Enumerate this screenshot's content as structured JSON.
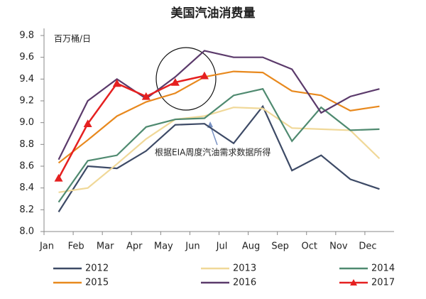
{
  "chart_data": {
    "type": "line",
    "title": "美国汽油消费量",
    "y_label": "百万桶/日",
    "annotation": "根据EIA周度汽油需求数据所得",
    "categories": [
      "Jan",
      "Feb",
      "Mar",
      "Apr",
      "May",
      "Jun",
      "Jul",
      "Aug",
      "Sep",
      "Oct",
      "Nov",
      "Dec"
    ],
    "ylim": [
      8.0,
      9.8
    ],
    "yticks": [
      {
        "value": 8.0,
        "label": "8.0"
      },
      8.2,
      8.4,
      8.6,
      8.8,
      {
        "value": 9.0,
        "label": "9.0"
      },
      9.2,
      9.4,
      9.6,
      9.8
    ],
    "series": [
      {
        "name": "2012",
        "color": "#3d4a66",
        "values": [
          8.18,
          8.6,
          8.58,
          8.74,
          8.98,
          8.99,
          8.81,
          9.15,
          8.56,
          8.7,
          8.48,
          8.39
        ]
      },
      {
        "name": "2013",
        "color": "#f0d898",
        "values": [
          8.36,
          8.4,
          8.62,
          8.85,
          9.03,
          9.06,
          9.14,
          9.13,
          8.95,
          8.94,
          8.93,
          8.67
        ]
      },
      {
        "name": "2014",
        "color": "#4f8a70",
        "values": [
          8.27,
          8.65,
          8.7,
          8.96,
          9.03,
          9.04,
          9.25,
          9.31,
          8.83,
          9.14,
          8.93,
          8.94
        ]
      },
      {
        "name": "2015",
        "color": "#e8891e",
        "values": [
          8.63,
          8.84,
          9.06,
          9.19,
          9.27,
          9.42,
          9.47,
          9.46,
          9.29,
          9.25,
          9.11,
          9.15
        ]
      },
      {
        "name": "2016",
        "color": "#5b3a6b",
        "values": [
          8.66,
          9.2,
          9.4,
          9.22,
          9.42,
          9.66,
          9.6,
          9.6,
          9.49,
          9.09,
          9.24,
          9.31
        ]
      },
      {
        "name": "2017",
        "color": "#e52020",
        "marker": "triangle",
        "values": [
          8.49,
          8.99,
          9.36,
          9.24,
          9.37,
          9.43,
          null,
          null,
          null,
          null,
          null,
          null
        ]
      }
    ]
  }
}
